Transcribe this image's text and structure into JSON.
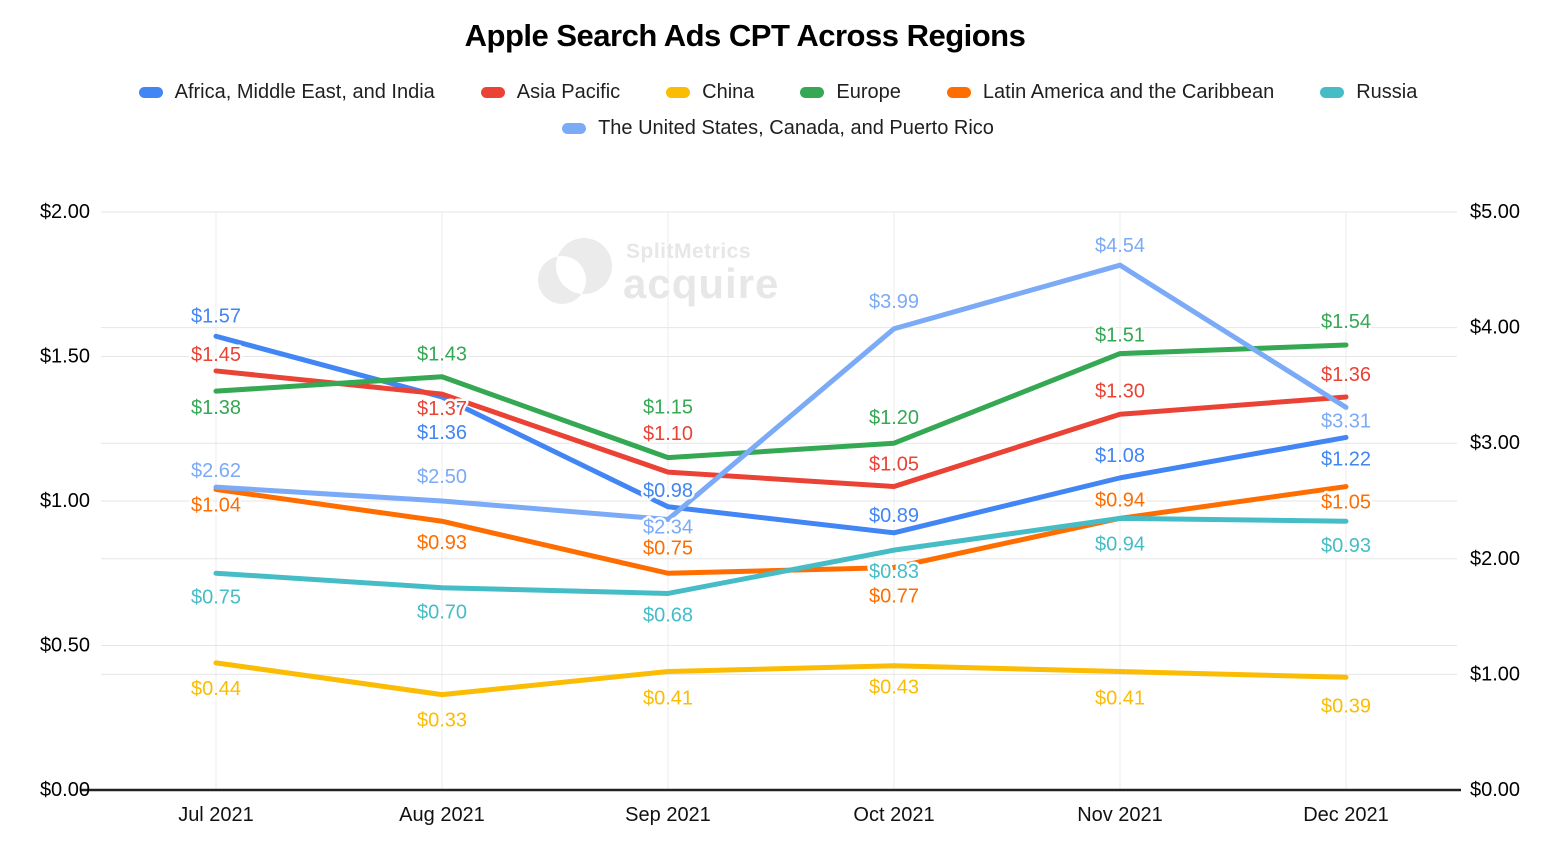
{
  "title": "Apple Search Ads CPT Across Regions",
  "watermark": {
    "brand": "SplitMetrics",
    "product": "acquire"
  },
  "chart_data": {
    "type": "line",
    "title": "Apple Search Ads CPT Across Regions",
    "categories": [
      "Jul 2021",
      "Aug 2021",
      "Sep 2021",
      "Oct 2021",
      "Nov 2021",
      "Dec 2021"
    ],
    "value_prefix": "$",
    "grid": true,
    "legend_position": "top",
    "series": [
      {
        "name": "Africa, Middle East, and India",
        "color": "#4285f4",
        "axis": "left",
        "values": [
          1.57,
          1.36,
          0.98,
          0.89,
          1.08,
          1.22
        ],
        "label_dy": [
          -20,
          36,
          -16,
          -17,
          -22,
          22
        ]
      },
      {
        "name": "Asia Pacific",
        "color": "#ea4335",
        "axis": "left",
        "values": [
          1.45,
          1.37,
          1.1,
          1.05,
          1.3,
          1.36
        ],
        "label_dy": [
          -16,
          15,
          -38,
          -22,
          -23,
          -22
        ]
      },
      {
        "name": "China",
        "color": "#fbbc04",
        "axis": "left",
        "values": [
          0.44,
          0.33,
          0.41,
          0.43,
          0.41,
          0.39
        ],
        "label_dy": [
          26,
          26,
          27,
          22,
          27,
          29
        ]
      },
      {
        "name": "Europe",
        "color": "#34a853",
        "axis": "left",
        "values": [
          1.38,
          1.43,
          1.15,
          1.2,
          1.51,
          1.54
        ],
        "label_dy": [
          17,
          -22,
          -50,
          -25,
          -18,
          -23
        ]
      },
      {
        "name": "Latin America and the Caribbean",
        "color": "#ff6d01",
        "axis": "left",
        "values": [
          1.04,
          0.93,
          0.75,
          0.77,
          0.94,
          1.05
        ],
        "label_dy": [
          16,
          22,
          -25,
          29,
          -18,
          16
        ]
      },
      {
        "name": "Russia",
        "color": "#46bdc6",
        "axis": "left",
        "values": [
          0.75,
          0.7,
          0.68,
          0.83,
          0.94,
          0.93
        ],
        "label_dy": [
          24,
          25,
          22,
          22,
          26,
          25
        ]
      },
      {
        "name": "The United States, Canada, and Puerto Rico",
        "color": "#7baaf7",
        "axis": "right",
        "values": [
          2.62,
          2.5,
          2.34,
          3.99,
          4.54,
          3.31
        ],
        "label_dy": [
          -16,
          -24,
          8,
          -27,
          -19,
          14
        ]
      }
    ],
    "left_axis": {
      "min": 0,
      "max": 2,
      "tick_values": [
        0,
        0.5,
        1,
        1.5,
        2
      ],
      "tick_labels": [
        "$0.00",
        "$0.50",
        "$1.00",
        "$1.50",
        "$2.00"
      ]
    },
    "right_axis": {
      "min": 0,
      "max": 5,
      "tick_values": [
        0,
        1,
        2,
        3,
        4,
        5
      ],
      "tick_labels": [
        "$0.00",
        "$1.00",
        "$2.00",
        "$3.00",
        "$4.00",
        "$5.00"
      ]
    }
  }
}
